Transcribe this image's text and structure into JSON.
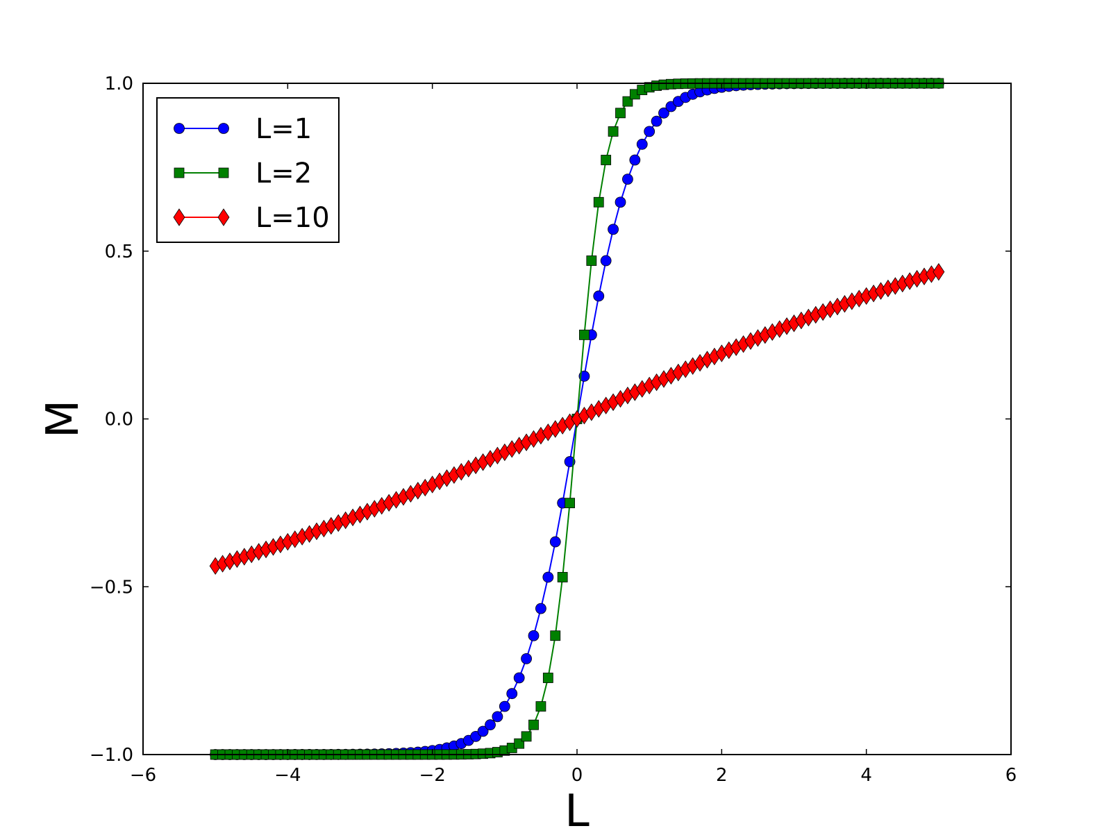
{
  "chart_data": {
    "type": "line",
    "xlabel": "L",
    "ylabel": "M",
    "xlim": [
      -6,
      6
    ],
    "ylim": [
      -1.0,
      1.0
    ],
    "xticks": [
      -6,
      -4,
      -2,
      0,
      2,
      4,
      6
    ],
    "xtick_labels": [
      "−6",
      "−4",
      "−2",
      "0",
      "2",
      "4",
      "6"
    ],
    "yticks": [
      -1.0,
      -0.5,
      0.0,
      0.5,
      1.0
    ],
    "ytick_labels": [
      "−1.0",
      "−0.5",
      "0.0",
      "0.5",
      "1.0"
    ],
    "grid": false,
    "legend_position": "top-left",
    "x_range": [
      -5,
      5
    ],
    "x_step": 0.1,
    "series": [
      {
        "name": "L=1",
        "color": "#0000ff",
        "marker": "circle",
        "scale": 1,
        "shape": "tanh"
      },
      {
        "name": "L=2",
        "color": "#008000",
        "marker": "square",
        "scale": 2,
        "shape": "tanh"
      },
      {
        "name": "L=10",
        "color": "#ff0000",
        "marker": "diamond",
        "scale": 10,
        "shape": "langevin"
      }
    ]
  }
}
